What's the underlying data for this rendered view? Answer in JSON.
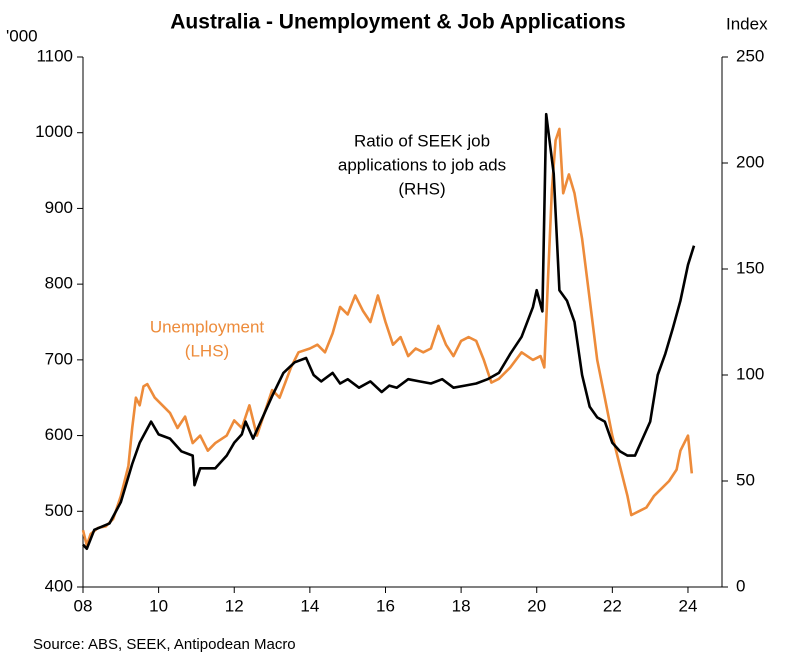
{
  "chart_data": {
    "type": "line",
    "title": "Australia - Unemployment & Job Applications",
    "y_label": "'000",
    "y2_label": "Index",
    "source": "Source: ABS, SEEK, Antipodean Macro",
    "annotations": [
      {
        "lines": [
          "Ratio of SEEK job",
          "applications to job ads",
          "(RHS)"
        ]
      },
      {
        "lines": [
          "Unemployment",
          "(LHS)"
        ]
      }
    ],
    "xlim": [
      2008,
      2024.9
    ],
    "xticks": [
      {
        "value": 2008,
        "label": "08"
      },
      {
        "value": 2010,
        "label": "10"
      },
      {
        "value": 2012,
        "label": "12"
      },
      {
        "value": 2014,
        "label": "14"
      },
      {
        "value": 2016,
        "label": "16"
      },
      {
        "value": 2018,
        "label": "18"
      },
      {
        "value": 2020,
        "label": "20"
      },
      {
        "value": 2022,
        "label": "22"
      },
      {
        "value": 2024,
        "label": "24"
      }
    ],
    "ylim": [
      400,
      1100
    ],
    "yticks": [
      400,
      500,
      600,
      700,
      800,
      900,
      1000,
      1100
    ],
    "y2lim": [
      0,
      250
    ],
    "y2ticks": [
      0,
      50,
      100,
      150,
      200,
      250
    ],
    "series": [
      {
        "name": "Unemployment",
        "color": "#ed8b3a",
        "axis": "y",
        "x": [
          2008.0,
          2008.1,
          2008.2,
          2008.4,
          2008.6,
          2008.8,
          2009.0,
          2009.2,
          2009.3,
          2009.4,
          2009.5,
          2009.6,
          2009.7,
          2009.9,
          2010.1,
          2010.3,
          2010.5,
          2010.7,
          2010.9,
          2011.1,
          2011.3,
          2011.5,
          2011.8,
          2012.0,
          2012.2,
          2012.4,
          2012.6,
          2012.8,
          2013.0,
          2013.2,
          2013.5,
          2013.7,
          2014.0,
          2014.2,
          2014.4,
          2014.6,
          2014.8,
          2015.0,
          2015.2,
          2015.4,
          2015.6,
          2015.8,
          2016.0,
          2016.2,
          2016.4,
          2016.6,
          2016.8,
          2017.0,
          2017.2,
          2017.4,
          2017.6,
          2017.8,
          2018.0,
          2018.2,
          2018.4,
          2018.6,
          2018.8,
          2019.0,
          2019.3,
          2019.6,
          2019.9,
          2020.1,
          2020.2,
          2020.3,
          2020.4,
          2020.5,
          2020.6,
          2020.7,
          2020.85,
          2021.0,
          2021.2,
          2021.4,
          2021.6,
          2021.8,
          2022.0,
          2022.2,
          2022.4,
          2022.5,
          2022.7,
          2022.9,
          2023.1,
          2023.3,
          2023.5,
          2023.7,
          2023.8,
          2024.0,
          2024.1
        ],
        "values": [
          475,
          455,
          470,
          478,
          480,
          490,
          520,
          560,
          610,
          650,
          640,
          665,
          668,
          650,
          640,
          630,
          610,
          625,
          590,
          600,
          580,
          590,
          600,
          620,
          610,
          640,
          600,
          630,
          660,
          650,
          690,
          710,
          715,
          720,
          710,
          735,
          770,
          760,
          785,
          765,
          750,
          785,
          750,
          720,
          730,
          705,
          715,
          710,
          715,
          745,
          720,
          705,
          725,
          730,
          725,
          700,
          670,
          675,
          690,
          710,
          700,
          705,
          690,
          810,
          925,
          990,
          1005,
          920,
          945,
          920,
          860,
          780,
          700,
          650,
          600,
          560,
          520,
          495,
          500,
          505,
          520,
          530,
          540,
          555,
          580,
          600,
          550
        ]
      },
      {
        "name": "Ratio of SEEK job applications to job ads",
        "color": "#000000",
        "axis": "y2",
        "x": [
          2008.0,
          2008.1,
          2008.3,
          2008.7,
          2009.0,
          2009.3,
          2009.5,
          2009.8,
          2010.0,
          2010.3,
          2010.6,
          2010.9,
          2010.95,
          2011.1,
          2011.5,
          2011.8,
          2012.0,
          2012.2,
          2012.3,
          2012.5,
          2012.8,
          2013.0,
          2013.3,
          2013.6,
          2013.9,
          2014.1,
          2014.3,
          2014.6,
          2014.8,
          2015.0,
          2015.3,
          2015.6,
          2015.9,
          2016.1,
          2016.3,
          2016.6,
          2016.9,
          2017.2,
          2017.5,
          2017.8,
          2018.1,
          2018.4,
          2018.7,
          2019.0,
          2019.3,
          2019.6,
          2019.9,
          2020.0,
          2020.15,
          2020.25,
          2020.45,
          2020.6,
          2020.8,
          2021.0,
          2021.2,
          2021.4,
          2021.6,
          2021.8,
          2022.0,
          2022.2,
          2022.4,
          2022.6,
          2022.8,
          2023.0,
          2023.2,
          2023.4,
          2023.6,
          2023.8,
          2024.0,
          2024.16
        ],
        "values": [
          20,
          18,
          27,
          30,
          40,
          58,
          68,
          78,
          72,
          70,
          64,
          62,
          48,
          56,
          56,
          62,
          68,
          72,
          78,
          70,
          82,
          90,
          101,
          106,
          108,
          100,
          97,
          101,
          96,
          98,
          94,
          97,
          92,
          95,
          94,
          98,
          97,
          96,
          98,
          94,
          95,
          96,
          98,
          101,
          110,
          118,
          132,
          140,
          130,
          223,
          195,
          140,
          135,
          125,
          100,
          85,
          80,
          78,
          68,
          64,
          62,
          62,
          70,
          78,
          100,
          110,
          122,
          135,
          152,
          161
        ]
      }
    ]
  }
}
